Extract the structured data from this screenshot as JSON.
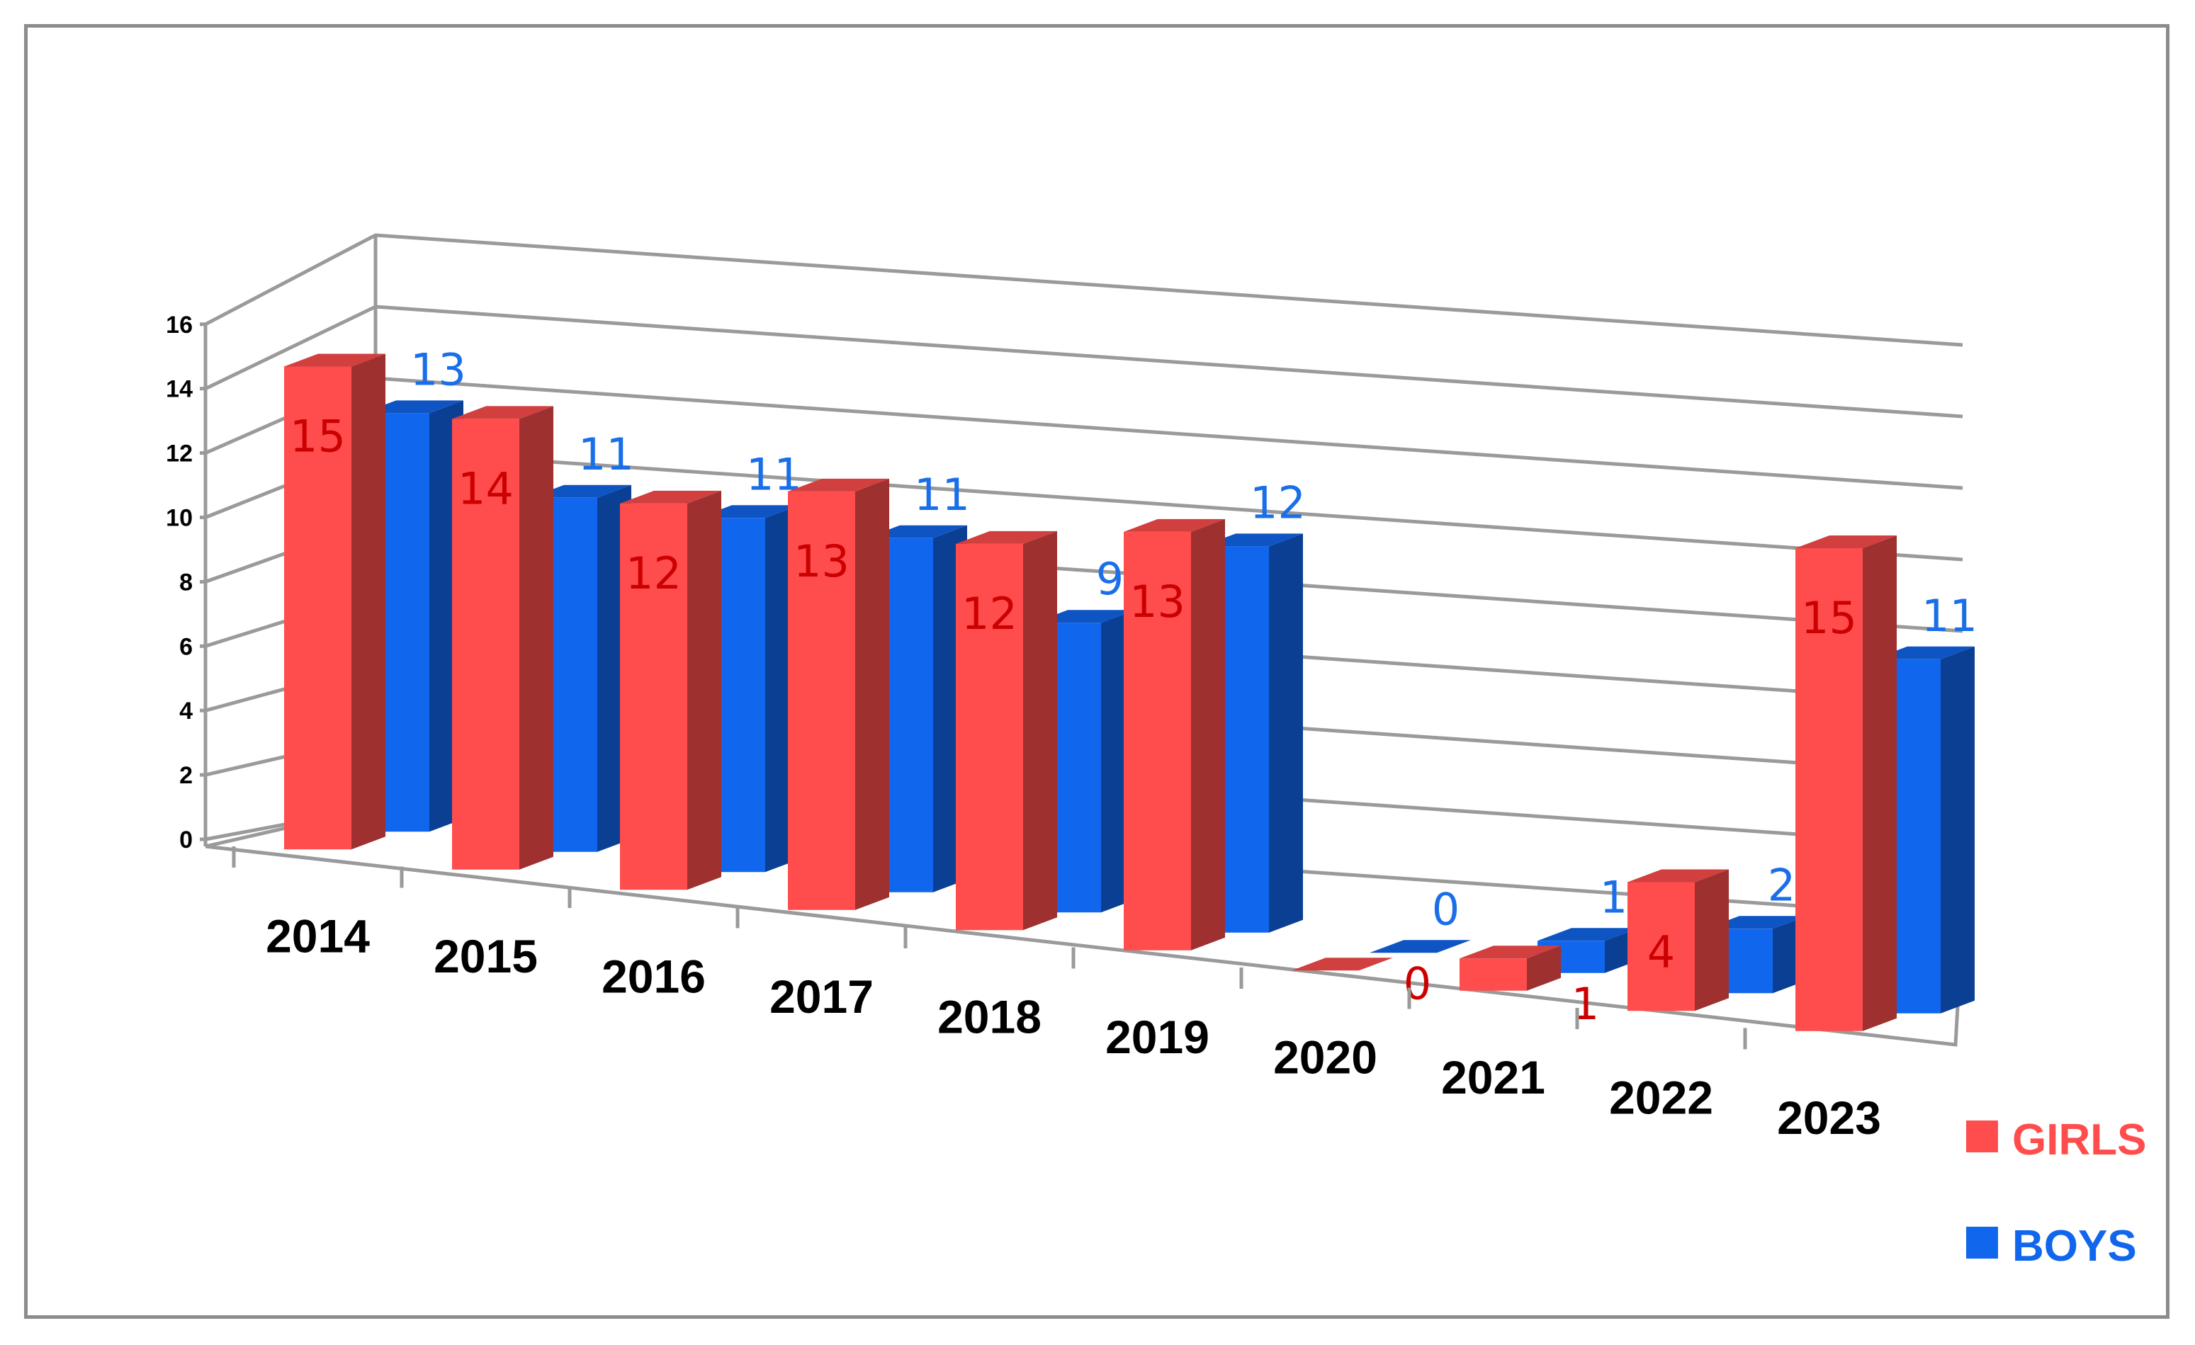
{
  "chart_data": {
    "type": "bar",
    "subtype": "3d-clustered-column",
    "categories": [
      "2014",
      "2015",
      "2016",
      "2017",
      "2018",
      "2019",
      "2020",
      "2021",
      "2022",
      "2023"
    ],
    "series": [
      {
        "name": "GIRLS",
        "color": "#ff4d4d",
        "label_color": "#cc0000",
        "values": [
          15,
          14,
          12,
          13,
          12,
          13,
          0,
          1,
          4,
          15
        ]
      },
      {
        "name": "BOYS",
        "color": "#1166ee",
        "label_color": "#1a6fe8",
        "values": [
          13,
          11,
          11,
          11,
          9,
          12,
          0,
          1,
          2,
          11
        ]
      }
    ],
    "y_ticks": [
      "0",
      "2",
      "4",
      "6",
      "8",
      "10",
      "12",
      "14",
      "16"
    ],
    "ylim": [
      0,
      16
    ],
    "grid": true,
    "legend": "bottom-right",
    "title": "",
    "xlabel": "",
    "ylabel": ""
  }
}
